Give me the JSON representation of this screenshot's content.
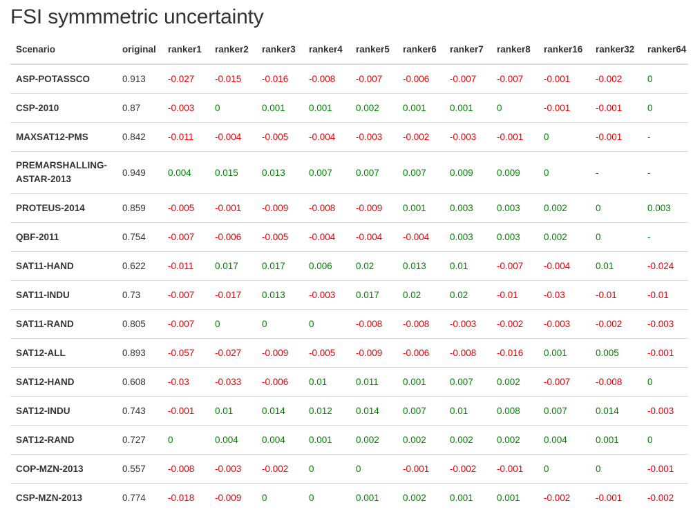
{
  "title": "FSI symmmetric uncertainty",
  "columns": [
    "Scenario",
    "original",
    "ranker1",
    "ranker2",
    "ranker3",
    "ranker4",
    "ranker5",
    "ranker6",
    "ranker7",
    "ranker8",
    "ranker16",
    "ranker32",
    "ranker64"
  ],
  "colors": {
    "negative": "#e00000",
    "positive": "#008000",
    "text": "#333333",
    "rule": "#dddddd"
  },
  "rows": [
    {
      "scenario": "ASP-POTASSCO",
      "original": "0.913",
      "values": [
        "-0.027",
        "-0.015",
        "-0.016",
        "-0.008",
        "-0.007",
        "-0.006",
        "-0.007",
        "-0.007",
        "-0.001",
        "-0.002",
        "0"
      ]
    },
    {
      "scenario": "CSP-2010",
      "original": "0.87",
      "values": [
        "-0.003",
        "0",
        "0.001",
        "0.001",
        "0.002",
        "0.001",
        "0.001",
        "0",
        "-0.001",
        "-0.001",
        "0"
      ]
    },
    {
      "scenario": "MAXSAT12-PMS",
      "original": "0.842",
      "values": [
        "-0.011",
        "-0.004",
        "-0.005",
        "-0.004",
        "-0.003",
        "-0.002",
        "-0.003",
        "-0.001",
        "0",
        "-0.001",
        "-"
      ]
    },
    {
      "scenario": "PREMARSHALLING-ASTAR-2013",
      "original": "0.949",
      "values": [
        "0.004",
        "0.015",
        "0.013",
        "0.007",
        "0.007",
        "0.007",
        "0.009",
        "0.009",
        "0",
        "-",
        "-"
      ]
    },
    {
      "scenario": "PROTEUS-2014",
      "original": "0.859",
      "values": [
        "-0.005",
        "-0.001",
        "-0.009",
        "-0.008",
        "-0.009",
        "0.001",
        "0.003",
        "0.003",
        "0.002",
        "0",
        "0.003"
      ]
    },
    {
      "scenario": "QBF-2011",
      "original": "0.754",
      "values": [
        "-0.007",
        "-0.006",
        "-0.005",
        "-0.004",
        "-0.004",
        "-0.004",
        "0.003",
        "0.003",
        "0.002",
        "0",
        "-"
      ]
    },
    {
      "scenario": "SAT11-HAND",
      "original": "0.622",
      "values": [
        "-0.011",
        "0.017",
        "0.017",
        "0.006",
        "0.02",
        "0.013",
        "0.01",
        "-0.007",
        "-0.004",
        "0.01",
        "-0.024"
      ]
    },
    {
      "scenario": "SAT11-INDU",
      "original": "0.73",
      "values": [
        "-0.007",
        "-0.017",
        "0.013",
        "-0.003",
        "0.017",
        "0.02",
        "0.02",
        "-0.01",
        "-0.03",
        "-0.01",
        "-0.01"
      ]
    },
    {
      "scenario": "SAT11-RAND",
      "original": "0.805",
      "values": [
        "-0.007",
        "0",
        "0",
        "0",
        "-0.008",
        "-0.008",
        "-0.003",
        "-0.002",
        "-0.003",
        "-0.002",
        "-0.003"
      ]
    },
    {
      "scenario": "SAT12-ALL",
      "original": "0.893",
      "values": [
        "-0.057",
        "-0.027",
        "-0.009",
        "-0.005",
        "-0.009",
        "-0.006",
        "-0.008",
        "-0.016",
        "0.001",
        "0.005",
        "-0.001"
      ]
    },
    {
      "scenario": "SAT12-HAND",
      "original": "0.608",
      "values": [
        "-0.03",
        "-0.033",
        "-0.006",
        "0.01",
        "0.011",
        "0.001",
        "0.007",
        "0.002",
        "-0.007",
        "-0.008",
        "0"
      ]
    },
    {
      "scenario": "SAT12-INDU",
      "original": "0.743",
      "values": [
        "-0.001",
        "0.01",
        "0.014",
        "0.012",
        "0.014",
        "0.007",
        "0.01",
        "0.008",
        "0.007",
        "0.014",
        "-0.003"
      ]
    },
    {
      "scenario": "SAT12-RAND",
      "original": "0.727",
      "values": [
        "0",
        "0.004",
        "0.004",
        "0.001",
        "0.002",
        "0.002",
        "0.002",
        "0.002",
        "0.004",
        "0.001",
        "0"
      ]
    },
    {
      "scenario": "COP-MZN-2013",
      "original": "0.557",
      "values": [
        "-0.008",
        "-0.003",
        "-0.002",
        "0",
        "0",
        "-0.001",
        "-0.002",
        "-0.001",
        "0",
        "0",
        "-0.001"
      ]
    },
    {
      "scenario": "CSP-MZN-2013",
      "original": "0.774",
      "values": [
        "-0.018",
        "-0.009",
        "0",
        "0",
        "0.001",
        "0.002",
        "0.001",
        "0.001",
        "-0.002",
        "-0.001",
        "-0.002"
      ]
    }
  ]
}
